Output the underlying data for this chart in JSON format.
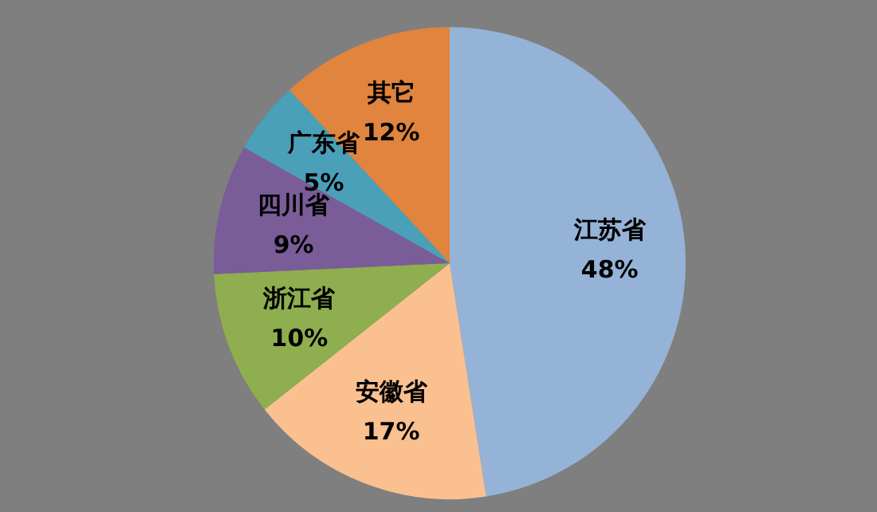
{
  "chart_data": {
    "type": "pie",
    "categories": [
      "江苏省",
      "安徽省",
      "浙江省",
      "四川省",
      "广东省",
      "其它"
    ],
    "values": [
      48,
      17,
      10,
      9,
      5,
      12
    ],
    "value_labels": [
      "48%",
      "17%",
      "10%",
      "9%",
      "5%",
      "12%"
    ],
    "colors": [
      "#95b3d7",
      "#fac090",
      "#8fae4f",
      "#7a5c98",
      "#4aa0b8",
      "#e0843e"
    ],
    "legend": false
  }
}
